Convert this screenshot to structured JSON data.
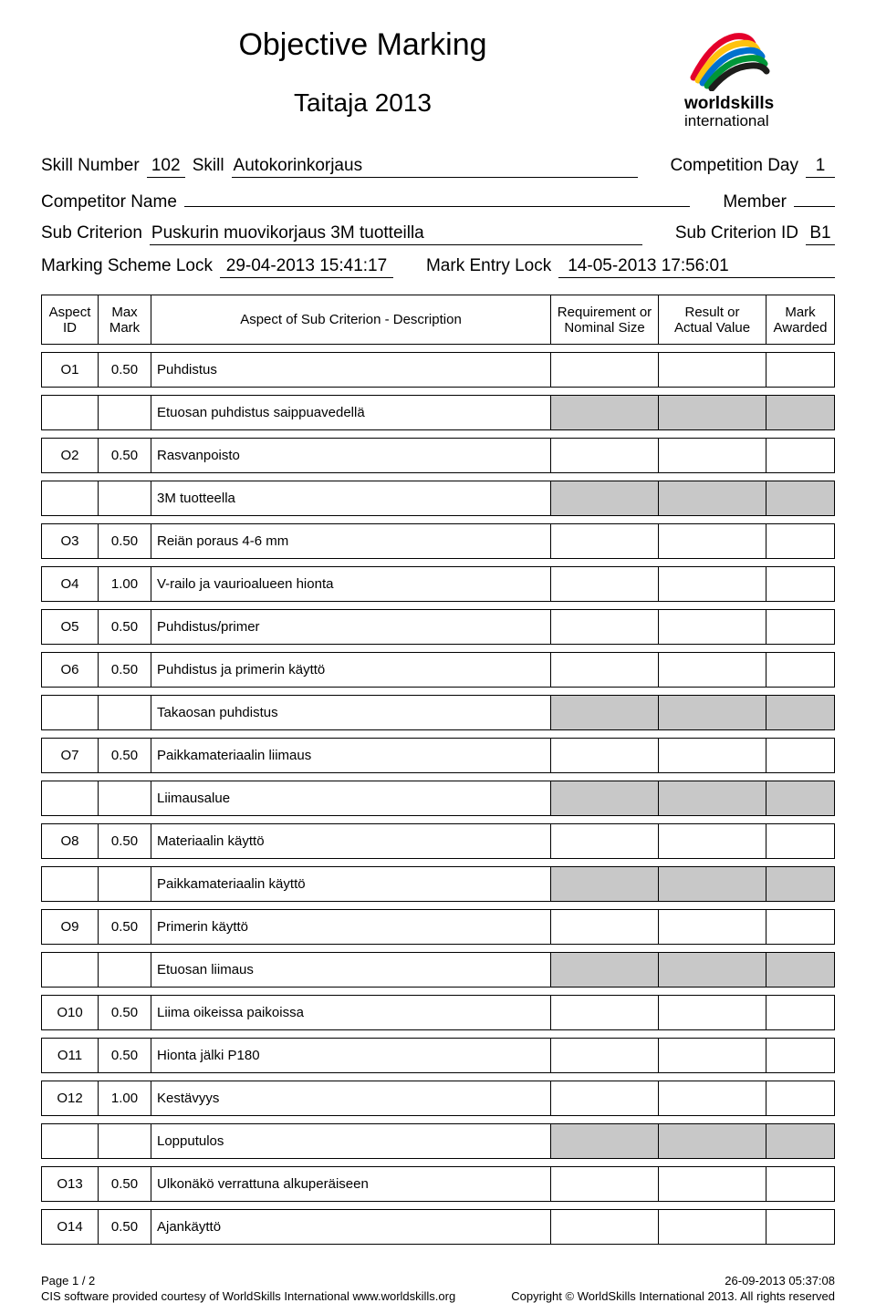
{
  "header": {
    "main_title": "Objective Marking",
    "sub_title": "Taitaja 2013"
  },
  "logo": {
    "line1": "worldskills",
    "line2": "international",
    "colors": [
      "#e4002b",
      "#ffc20e",
      "#0072ce",
      "#009639",
      "#1d1d1b"
    ]
  },
  "meta": {
    "skill_number_label": "Skill Number",
    "skill_number": "102",
    "skill_label": "Skill",
    "skill_name": "Autokorinkorjaus",
    "competition_day_label": "Competition Day",
    "competition_day": "1",
    "competitor_name_label": "Competitor Name",
    "competitor_name": "",
    "member_label": "Member",
    "member": "",
    "sub_criterion_label": "Sub Criterion",
    "sub_criterion": "Puskurin  muovikorjaus 3M tuotteilla",
    "sub_criterion_id_label": "Sub Criterion ID",
    "sub_criterion_id": "B1",
    "marking_scheme_lock_label": "Marking Scheme Lock",
    "marking_scheme_lock": "29-04-2013  15:41:17",
    "mark_entry_lock_label": "Mark Entry Lock",
    "mark_entry_lock": "14-05-2013  17:56:01"
  },
  "columns": {
    "aspect_id": "Aspect\nID",
    "max_mark": "Max\nMark",
    "description": "Aspect of Sub Criterion - Description",
    "requirement": "Requirement or Nominal Size",
    "result": "Result or Actual Value",
    "awarded": "Mark Awarded"
  },
  "rows": [
    {
      "type": "aspect",
      "id": "O1",
      "max": "0.50",
      "desc": "Puhdistus"
    },
    {
      "type": "note",
      "desc": "Etuosan puhdistus saippuavedellä"
    },
    {
      "type": "aspect",
      "id": "O2",
      "max": "0.50",
      "desc": "Rasvanpoisto"
    },
    {
      "type": "note",
      "desc": "3M tuotteella"
    },
    {
      "type": "aspect",
      "id": "O3",
      "max": "0.50",
      "desc": "Reiän poraus 4-6 mm"
    },
    {
      "type": "aspect",
      "id": "O4",
      "max": "1.00",
      "desc": "V-railo ja vaurioalueen hionta"
    },
    {
      "type": "aspect",
      "id": "O5",
      "max": "0.50",
      "desc": "Puhdistus/primer"
    },
    {
      "type": "aspect",
      "id": "O6",
      "max": "0.50",
      "desc": "Puhdistus ja primerin käyttö"
    },
    {
      "type": "note",
      "desc": "Takaosan puhdistus"
    },
    {
      "type": "aspect",
      "id": "O7",
      "max": "0.50",
      "desc": "Paikkamateriaalin liimaus"
    },
    {
      "type": "note",
      "desc": "Liimausalue"
    },
    {
      "type": "aspect",
      "id": "O8",
      "max": "0.50",
      "desc": "Materiaalin käyttö"
    },
    {
      "type": "note",
      "desc": "Paikkamateriaalin käyttö"
    },
    {
      "type": "aspect",
      "id": "O9",
      "max": "0.50",
      "desc": "Primerin käyttö"
    },
    {
      "type": "note",
      "desc": "Etuosan liimaus"
    },
    {
      "type": "aspect",
      "id": "O10",
      "max": "0.50",
      "desc": "Liima oikeissa paikoissa"
    },
    {
      "type": "aspect",
      "id": "O11",
      "max": "0.50",
      "desc": "Hionta jälki P180"
    },
    {
      "type": "aspect",
      "id": "O12",
      "max": "1.00",
      "desc": "Kestävyys"
    },
    {
      "type": "note",
      "desc": "Lopputulos"
    },
    {
      "type": "aspect",
      "id": "O13",
      "max": "0.50",
      "desc": "Ulkonäkö verrattuna alkuperäiseen"
    },
    {
      "type": "aspect",
      "id": "O14",
      "max": "0.50",
      "desc": "Ajankäyttö"
    }
  ],
  "footer": {
    "page": "Page 1 / 2",
    "timestamp": "26-09-2013  05:37:08",
    "credit": "CIS software provided courtesy of WorldSkills International www.worldskills.org",
    "copyright": "Copyright © WorldSkills International 2013. All rights reserved"
  }
}
